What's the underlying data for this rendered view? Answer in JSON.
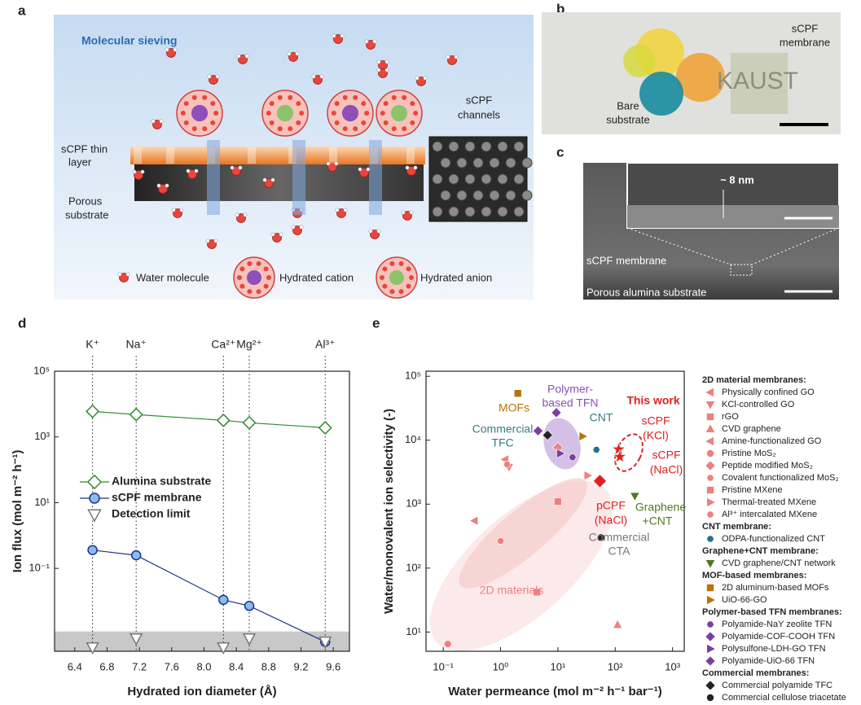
{
  "panels": {
    "a": {
      "letter": "a",
      "title": "Molecular sieving",
      "layer_label": [
        "sCPF thin",
        "layer"
      ],
      "substrate_label": [
        "Porous",
        "substrate"
      ],
      "channels_label": [
        "sCPF",
        "channels"
      ],
      "legend": [
        "Water molecule",
        "Hydrated cation",
        "Hydrated anion"
      ]
    },
    "b": {
      "letter": "b",
      "membrane_label": [
        "sCPF",
        "membrane"
      ],
      "substrate_label": [
        "Bare",
        "substrate"
      ],
      "logo": "KAUST"
    },
    "c": {
      "letter": "c",
      "thickness": "~ 8 nm",
      "membrane_label": "sCPF membrane",
      "substrate_label": "Porous alumina substrate"
    },
    "d": {
      "letter": "d"
    },
    "e": {
      "letter": "e"
    }
  },
  "chart_data": [
    {
      "type": "line",
      "x_label": "Hydrated ion diameter (Å)",
      "y_label": "Ion flux (mol m⁻² h⁻¹)",
      "ion_labels": [
        "K⁺",
        "Na⁺",
        "Ca²⁺",
        "Mg²⁺",
        "Al³⁺"
      ],
      "x": [
        6.62,
        7.16,
        8.24,
        8.56,
        9.5
      ],
      "xlim": [
        6.15,
        9.8
      ],
      "xticks": [
        6.4,
        6.8,
        7.2,
        7.6,
        {
          "value": 8,
          "label": "8.0"
        },
        8.4,
        8.8,
        9.2,
        9.6
      ],
      "yscale": "log",
      "ylim": [
        0.0003,
        100000
      ],
      "yticks": [
        {
          "value": 0.1,
          "label": "10⁻¹"
        },
        {
          "value": 10,
          "label": "10¹"
        },
        {
          "value": 1000,
          "label": "10³"
        },
        {
          "value": 100000,
          "label": "10⁵"
        }
      ],
      "detection_band_top": 0.0012,
      "series": [
        {
          "name": "Alumina substrate",
          "color": "#2e8b2e",
          "fill": "#ffffff",
          "marker": "diamond",
          "line": true,
          "values": [
            6000,
            4800,
            3200,
            2700,
            1900
          ]
        },
        {
          "name": "sCPF membrane",
          "color": "#1f2f8f",
          "fill": "#86bfea",
          "marker": "circle",
          "line": true,
          "values": [
            0.36,
            0.25,
            0.011,
            0.0072,
            0.00058
          ]
        },
        {
          "name": "Detection limit",
          "color": "#777777",
          "fill": "#ffffff",
          "marker": "tri-down",
          "line": false,
          "values": [
            0.0004,
            0.00075,
            0.0004,
            0.00075,
            0.0006
          ]
        }
      ]
    },
    {
      "type": "scatter",
      "x_label": "Water permeance (mol m⁻² h⁻¹ bar⁻¹)",
      "y_label": "Water/monovalent ion selectivity (-)",
      "xscale": "log",
      "yscale": "log",
      "xlim": [
        0.05,
        1600
      ],
      "ylim": [
        5,
        120000
      ],
      "xticks": [
        {
          "value": 0.1,
          "label": "10⁻¹"
        },
        {
          "value": 1,
          "label": "10⁰"
        },
        {
          "value": 10,
          "label": "10¹"
        },
        {
          "value": 100,
          "label": "10²"
        },
        {
          "value": 1000,
          "label": "10³"
        }
      ],
      "yticks": [
        {
          "value": 10,
          "label": "10¹"
        },
        {
          "value": 100,
          "label": "10²"
        },
        {
          "value": 1000,
          "label": "10³"
        },
        {
          "value": 10000,
          "label": "10⁴"
        },
        {
          "value": 100000,
          "label": "10⁵"
        }
      ],
      "groups": [
        {
          "name": "2D material membranes:",
          "series": [
            {
              "name": "Physically confined GO",
              "color": "#ee8080",
              "marker": "tri-left",
              "x": [
                0.35
              ],
              "values": [
                550
              ]
            },
            {
              "name": "KCl-controlled GO",
              "color": "#ee8080",
              "marker": "tri-down",
              "x": [
                1.4
              ],
              "values": [
                3800
              ]
            },
            {
              "name": "rGO",
              "color": "#ee8080",
              "marker": "square",
              "x": [
                10
              ],
              "values": [
                1100
              ]
            },
            {
              "name": "CVD graphene",
              "color": "#ee8080",
              "marker": "tri-up",
              "x": [
                110
              ],
              "values": [
                13
              ]
            },
            {
              "name": "Amine-functionalized GO",
              "color": "#ee8080",
              "marker": "tri-left",
              "x": [
                1.2
              ],
              "values": [
                5000
              ]
            },
            {
              "name": "Pristine MoS₂",
              "color": "#ee8080",
              "marker": "circle",
              "x": [
                0.12
              ],
              "values": [
                6.5
              ]
            },
            {
              "name": "Peptide modified MoS₂",
              "color": "#ee8080",
              "marker": "diamond",
              "x": [
                10
              ],
              "values": [
                7700
              ]
            },
            {
              "name": "Covalent functionalized MoS₂",
              "color": "#ee8080",
              "marker": "hexagon",
              "x": [
                1.3
              ],
              "values": [
                4200
              ]
            },
            {
              "name": "Pristine MXene",
              "color": "#ee8080",
              "marker": "square",
              "x": [
                4.3
              ],
              "values": [
                42
              ]
            },
            {
              "name": "Thermal-treated MXene",
              "color": "#ee8080",
              "marker": "tri-right",
              "x": [
                33
              ],
              "values": [
                2800
              ]
            },
            {
              "name": "Al³⁺ intercalated MXene",
              "color": "#ee8080",
              "marker": "hexagon",
              "x": [
                1.0
              ],
              "values": [
                265
              ]
            }
          ]
        },
        {
          "name": "CNT membrane:",
          "series": [
            {
              "name": "ODPA-functionalized CNT",
              "color": "#2a6f8f",
              "marker": "hexagon",
              "x": [
                47
              ],
              "values": [
                7100
              ]
            }
          ]
        },
        {
          "name": "Graphene+CNT membrane:",
          "series": [
            {
              "name": "CVD graphene/CNT network",
              "color": "#4e7a1e",
              "marker": "tri-down",
              "x": [
                220
              ],
              "values": [
                1340
              ]
            }
          ]
        },
        {
          "name": "MOF-based membranes:",
          "series": [
            {
              "name": "2D aluminum-based MOFs",
              "color": "#b8730f",
              "marker": "square",
              "x": [
                2.0
              ],
              "values": [
                54000
              ]
            },
            {
              "name": "UiO-66-GO",
              "color": "#b8730f",
              "marker": "tri-right",
              "x": [
                27
              ],
              "values": [
                11500
              ]
            }
          ]
        },
        {
          "name": "Polymer-based TFN membranes:",
          "series": [
            {
              "name": "Polyamide-NaY zeolite TFN",
              "color": "#7b3fa0",
              "marker": "hexagon",
              "x": [
                18
              ],
              "values": [
                5400
              ]
            },
            {
              "name": "Polyamide-COF-COOH TFN",
              "color": "#7b3fa0",
              "marker": "diamond",
              "x": [
                9.4
              ],
              "values": [
                27000
              ]
            },
            {
              "name": "Polysulfone-LDH-GO TFN",
              "color": "#7b3fa0",
              "marker": "tri-right",
              "x": [
                11
              ],
              "values": [
                6200
              ]
            },
            {
              "name": "Polyamide-UiO-66 TFN",
              "color": "#7b3fa0",
              "marker": "diamond",
              "x": [
                4.5
              ],
              "values": [
                14000
              ]
            }
          ]
        },
        {
          "name": "Commercial membranes:",
          "series": [
            {
              "name": "Commercial polyamide TFC",
              "color": "#222222",
              "marker": "diamond",
              "x": [
                6.6
              ],
              "values": [
                12000
              ]
            },
            {
              "name": "Commercial cellulose triacetate",
              "color": "#222222",
              "marker": "circle",
              "x": [
                56
              ],
              "values": [
                300
              ]
            }
          ]
        }
      ],
      "highlight": [
        {
          "color": "#e02020",
          "marker": "star",
          "x": [
            115
          ],
          "values": [
            7200
          ]
        },
        {
          "color": "#e02020",
          "marker": "star",
          "x": [
            120
          ],
          "values": [
            5500
          ]
        },
        {
          "color": "#e02020",
          "marker": "diamond",
          "x": [
            54
          ],
          "values": [
            2300
          ]
        }
      ],
      "annotations": [
        {
          "lines": [
            "MOFs"
          ],
          "color": "#b8730f"
        },
        {
          "lines": [
            "Polymer-",
            "based TFN"
          ],
          "color": "#8e4fb8"
        },
        {
          "lines": [
            "Commercial",
            "TFC"
          ],
          "color": "#3a7a8a"
        },
        {
          "lines": [
            "CNT"
          ],
          "color": "#3a7a8a"
        },
        {
          "lines": [
            "This work"
          ],
          "color": "#e02020"
        },
        {
          "lines": [
            "sCPF",
            "(KCl)"
          ],
          "color": "#e02020"
        },
        {
          "lines": [
            "sCPF",
            "(NaCl)"
          ],
          "color": "#e02020"
        },
        {
          "lines": [
            "pCPF",
            "(NaCl)"
          ],
          "color": "#e02020"
        },
        {
          "lines": [
            "Graphene",
            "+CNT"
          ],
          "color": "#4e7a1e"
        },
        {
          "lines": [
            "Commercial",
            "CTA"
          ],
          "color": "#777777"
        },
        {
          "lines": [
            "2D materials"
          ],
          "color": "#ee8080"
        }
      ]
    }
  ]
}
